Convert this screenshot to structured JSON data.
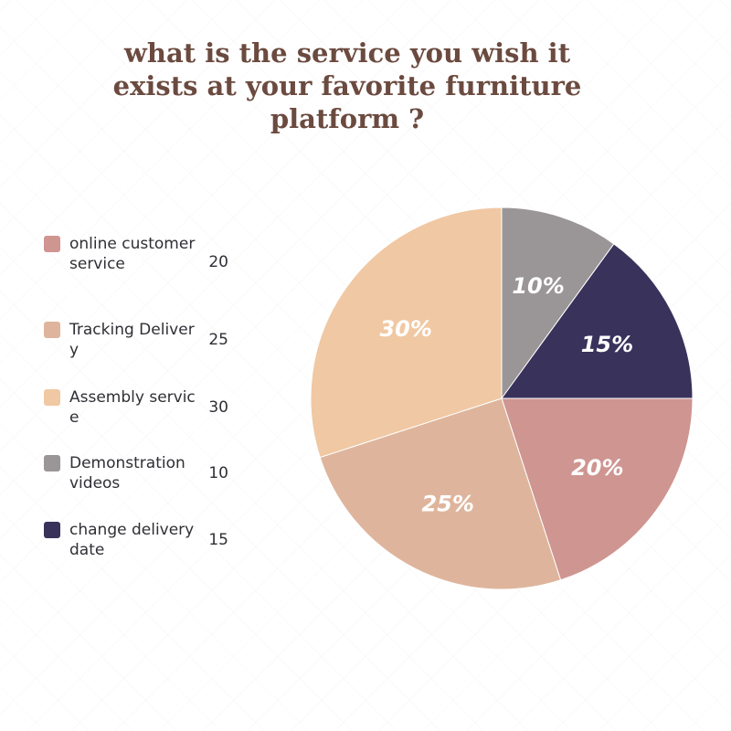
{
  "chart_data": {
    "type": "pie",
    "title": "what is the service you wish it exists at your favorite furniture platform ?",
    "slices": [
      {
        "name": "online customer service",
        "value": 20,
        "percent_label": "20%",
        "color": "#cf9591"
      },
      {
        "name": "Tracking Delivery",
        "value": 25,
        "percent_label": "25%",
        "color": "#deb59c"
      },
      {
        "name": "Assembly service",
        "value": 30,
        "percent_label": "30%",
        "color": "#f0c8a3"
      },
      {
        "name": "Demonstration videos",
        "value": 10,
        "percent_label": "10%",
        "color": "#9a9596"
      },
      {
        "name": "change delivery date",
        "value": 15,
        "percent_label": "15%",
        "color": "#39325b"
      }
    ],
    "legend_position": "left"
  }
}
